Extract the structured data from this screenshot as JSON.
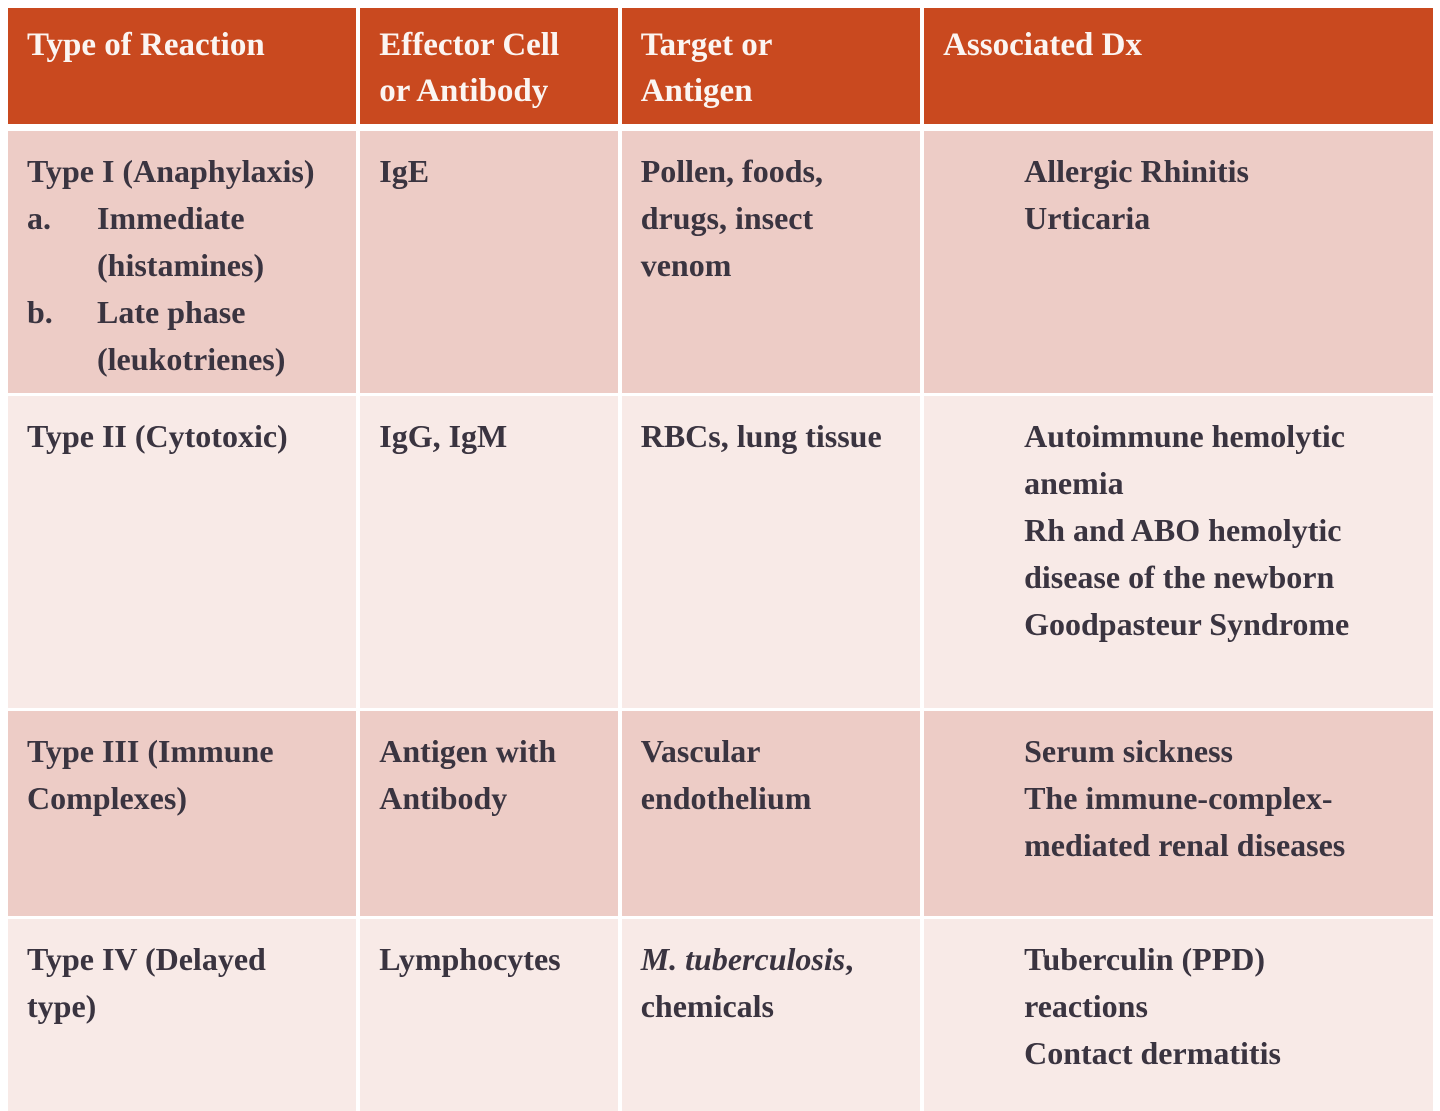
{
  "colors": {
    "header_bg": "#C9491F",
    "header_text": "#FBF5F2",
    "row_odd_bg": "#EDCCC6",
    "row_even_bg": "#F8EAE7",
    "body_text": "#3A3440"
  },
  "table": {
    "columns": [
      {
        "label": "Type of Reaction",
        "lines": [
          "Type of Reaction"
        ]
      },
      {
        "label": "Effector Cell or Antibody",
        "lines": [
          "Effector Cell",
          "or Antibody"
        ]
      },
      {
        "label": "Target or Antigen",
        "lines": [
          "Target or",
          "Antigen"
        ]
      },
      {
        "label": "Associated Dx",
        "lines": [
          "Associated Dx"
        ]
      }
    ],
    "rows": [
      {
        "type": {
          "lines": [
            "Type I (Anaphylaxis)"
          ],
          "list": [
            {
              "marker": "a.",
              "lines": [
                "Immediate",
                "(histamines)"
              ]
            },
            {
              "marker": "b.",
              "lines": [
                "Late phase",
                "(leukotrienes)"
              ]
            }
          ]
        },
        "effector": {
          "lines": [
            "IgE"
          ]
        },
        "target": {
          "lines": [
            "Pollen, foods,",
            "drugs, insect",
            "venom"
          ]
        },
        "dx": {
          "lines": [
            "Allergic Rhinitis",
            "Urticaria"
          ]
        }
      },
      {
        "type": {
          "lines": [
            "Type II (Cytotoxic)"
          ]
        },
        "effector": {
          "lines": [
            "IgG, IgM"
          ]
        },
        "target": {
          "lines": [
            "RBCs, lung tissue"
          ]
        },
        "dx": {
          "lines": [
            "Autoimmune hemolytic",
            "anemia",
            "Rh and ABO hemolytic",
            "disease of the newborn",
            "Goodpasteur Syndrome"
          ]
        }
      },
      {
        "type": {
          "lines": [
            "Type III (Immune",
            "Complexes)"
          ]
        },
        "effector": {
          "lines": [
            "Antigen with",
            "Antibody"
          ]
        },
        "target": {
          "lines": [
            "Vascular",
            "endothelium"
          ]
        },
        "dx": {
          "lines": [
            "Serum sickness",
            "The immune-complex-",
            "mediated renal diseases"
          ]
        }
      },
      {
        "type": {
          "lines": [
            "Type IV (Delayed",
            "type)"
          ]
        },
        "effector": {
          "lines": [
            "Lymphocytes"
          ]
        },
        "target": {
          "italic": "M. tuberculosis",
          "rest": ",",
          "lines": [
            "chemicals"
          ]
        },
        "dx": {
          "lines": [
            "Tuberculin (PPD)",
            "reactions",
            "Contact dermatitis"
          ]
        }
      }
    ]
  }
}
